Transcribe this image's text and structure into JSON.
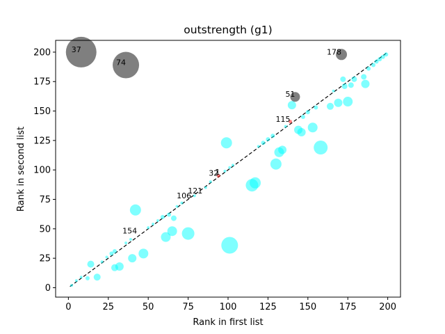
{
  "chart_data": {
    "type": "scatter",
    "title": "outstrength (g1)",
    "xlabel": "Rank in first list",
    "ylabel": "Rank in second list",
    "xlim": [
      -8,
      208
    ],
    "ylim": [
      -8,
      210
    ],
    "xticks": [
      0,
      25,
      50,
      75,
      100,
      125,
      150,
      175,
      200
    ],
    "yticks": [
      0,
      25,
      50,
      75,
      100,
      125,
      150,
      175,
      200
    ],
    "grid": false,
    "reference_line": {
      "from": [
        1,
        1
      ],
      "to": [
        200,
        200
      ],
      "style": "dashed",
      "color": "#000000"
    },
    "colors": {
      "cyan": "#00ffff",
      "gray": "#000000",
      "red": "#ff0000"
    },
    "annotations": [
      {
        "text": "37",
        "x": 8,
        "y": 200
      },
      {
        "text": "74",
        "x": 36,
        "y": 189
      },
      {
        "text": "178",
        "x": 171,
        "y": 198
      },
      {
        "text": "51",
        "x": 142,
        "y": 162
      },
      {
        "text": "115",
        "x": 139,
        "y": 141
      },
      {
        "text": "32",
        "x": 94,
        "y": 95
      },
      {
        "text": "1",
        "x": 95,
        "y": 96
      },
      {
        "text": "121",
        "x": 84,
        "y": 80
      },
      {
        "text": "106",
        "x": 77,
        "y": 76
      },
      {
        "text": "154",
        "x": 43,
        "y": 46
      }
    ],
    "series": [
      {
        "color": "gray",
        "points": [
          {
            "x": 8,
            "y": 200,
            "s": 22
          },
          {
            "x": 36,
            "y": 189,
            "s": 19
          },
          {
            "x": 171,
            "y": 198,
            "s": 8
          },
          {
            "x": 142,
            "y": 162,
            "s": 7
          }
        ]
      },
      {
        "color": "red",
        "points": [
          {
            "x": 139,
            "y": 141,
            "s": 2.5
          },
          {
            "x": 94,
            "y": 95,
            "s": 2.5
          }
        ]
      },
      {
        "color": "cyan",
        "points": [
          {
            "x": 2,
            "y": 2,
            "s": 2
          },
          {
            "x": 5,
            "y": 6,
            "s": 2
          },
          {
            "x": 8,
            "y": 9,
            "s": 2
          },
          {
            "x": 12,
            "y": 8,
            "s": 3
          },
          {
            "x": 14,
            "y": 20,
            "s": 5
          },
          {
            "x": 18,
            "y": 9,
            "s": 5
          },
          {
            "x": 21,
            "y": 22,
            "s": 2
          },
          {
            "x": 24,
            "y": 26,
            "s": 2
          },
          {
            "x": 27,
            "y": 29,
            "s": 3
          },
          {
            "x": 29,
            "y": 31,
            "s": 3
          },
          {
            "x": 29,
            "y": 17,
            "s": 5
          },
          {
            "x": 32,
            "y": 18,
            "s": 6
          },
          {
            "x": 36,
            "y": 38,
            "s": 2
          },
          {
            "x": 39,
            "y": 41,
            "s": 2
          },
          {
            "x": 40,
            "y": 25,
            "s": 6
          },
          {
            "x": 42,
            "y": 66,
            "s": 8
          },
          {
            "x": 47,
            "y": 29,
            "s": 7
          },
          {
            "x": 50,
            "y": 51,
            "s": 2
          },
          {
            "x": 53,
            "y": 54,
            "s": 2
          },
          {
            "x": 56,
            "y": 57,
            "s": 2
          },
          {
            "x": 59,
            "y": 60,
            "s": 3
          },
          {
            "x": 61,
            "y": 43,
            "s": 7
          },
          {
            "x": 63,
            "y": 62,
            "s": 3
          },
          {
            "x": 65,
            "y": 48,
            "s": 7
          },
          {
            "x": 66,
            "y": 59,
            "s": 4
          },
          {
            "x": 68,
            "y": 69,
            "s": 2
          },
          {
            "x": 71,
            "y": 72,
            "s": 2
          },
          {
            "x": 75,
            "y": 46,
            "s": 9
          },
          {
            "x": 79,
            "y": 78,
            "s": 2
          },
          {
            "x": 86,
            "y": 85,
            "s": 2
          },
          {
            "x": 89,
            "y": 90,
            "s": 2
          },
          {
            "x": 98,
            "y": 99,
            "s": 2
          },
          {
            "x": 101,
            "y": 102,
            "s": 2
          },
          {
            "x": 103,
            "y": 104,
            "s": 2
          },
          {
            "x": 101,
            "y": 36,
            "s": 12
          },
          {
            "x": 99,
            "y": 123,
            "s": 8
          },
          {
            "x": 115,
            "y": 87,
            "s": 9
          },
          {
            "x": 117,
            "y": 89,
            "s": 8
          },
          {
            "x": 119,
            "y": 120,
            "s": 2
          },
          {
            "x": 122,
            "y": 123,
            "s": 3
          },
          {
            "x": 125,
            "y": 126,
            "s": 3
          },
          {
            "x": 128,
            "y": 129,
            "s": 3
          },
          {
            "x": 130,
            "y": 105,
            "s": 8
          },
          {
            "x": 132,
            "y": 115,
            "s": 7
          },
          {
            "x": 134,
            "y": 117,
            "s": 6
          },
          {
            "x": 136,
            "y": 137,
            "s": 2
          },
          {
            "x": 140,
            "y": 155,
            "s": 6
          },
          {
            "x": 144,
            "y": 134,
            "s": 6
          },
          {
            "x": 146,
            "y": 132,
            "s": 6
          },
          {
            "x": 147,
            "y": 145,
            "s": 3
          },
          {
            "x": 150,
            "y": 149,
            "s": 3
          },
          {
            "x": 153,
            "y": 136,
            "s": 7
          },
          {
            "x": 155,
            "y": 153,
            "s": 3
          },
          {
            "x": 158,
            "y": 119,
            "s": 10
          },
          {
            "x": 164,
            "y": 154,
            "s": 5
          },
          {
            "x": 166,
            "y": 167,
            "s": 2
          },
          {
            "x": 169,
            "y": 157,
            "s": 6
          },
          {
            "x": 172,
            "y": 177,
            "s": 4
          },
          {
            "x": 173,
            "y": 171,
            "s": 4
          },
          {
            "x": 175,
            "y": 158,
            "s": 7
          },
          {
            "x": 177,
            "y": 172,
            "s": 4
          },
          {
            "x": 179,
            "y": 177,
            "s": 4
          },
          {
            "x": 185,
            "y": 179,
            "s": 4
          },
          {
            "x": 186,
            "y": 173,
            "s": 6
          },
          {
            "x": 188,
            "y": 186,
            "s": 3
          },
          {
            "x": 191,
            "y": 189,
            "s": 3
          },
          {
            "x": 193,
            "y": 192,
            "s": 3
          },
          {
            "x": 195,
            "y": 194,
            "s": 3
          },
          {
            "x": 197,
            "y": 196,
            "s": 3
          },
          {
            "x": 199,
            "y": 198,
            "s": 3
          }
        ]
      }
    ]
  }
}
